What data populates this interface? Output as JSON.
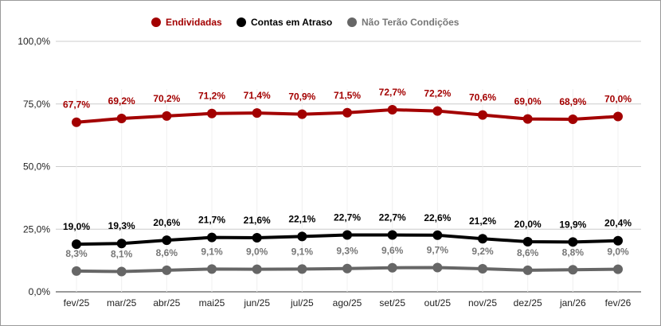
{
  "chart_data": {
    "type": "line",
    "title": "",
    "xlabel": "",
    "ylabel": "",
    "ylim": [
      0,
      100
    ],
    "yticks": [
      "0,0%",
      "25,0%",
      "50,0%",
      "75,0%",
      "100,0%"
    ],
    "grid": true,
    "legend_position": "top",
    "categories": [
      "fev/25",
      "mar/25",
      "abr/25",
      "mai25",
      "jun/25",
      "jul/25",
      "ago/25",
      "set/25",
      "out/25",
      "nov/25",
      "dez/25",
      "jan/26",
      "fev/26"
    ],
    "series": [
      {
        "name": "Endividadas",
        "color": "#a30000",
        "values": [
          67.7,
          69.2,
          70.2,
          71.2,
          71.4,
          70.9,
          71.5,
          72.7,
          72.2,
          70.6,
          69.0,
          68.9,
          70.0
        ],
        "labels": [
          "67,7%",
          "69,2%",
          "70,2%",
          "71,2%",
          "71,4%",
          "70,9%",
          "71,5%",
          "72,7%",
          "72,2%",
          "70,6%",
          "69,0%",
          "68,9%",
          "70,0%"
        ]
      },
      {
        "name": "Contas em Atraso",
        "color": "#000000",
        "values": [
          19.0,
          19.3,
          20.6,
          21.7,
          21.6,
          22.1,
          22.7,
          22.7,
          22.6,
          21.2,
          20.0,
          19.9,
          20.4
        ],
        "labels": [
          "19,0%",
          "19,3%",
          "20,6%",
          "21,7%",
          "21,6%",
          "22,1%",
          "22,7%",
          "22,7%",
          "22,6%",
          "21,2%",
          "20,0%",
          "19,9%",
          "20,4%"
        ]
      },
      {
        "name": "Não Terão Condições",
        "color": "#666666",
        "values": [
          8.3,
          8.1,
          8.6,
          9.1,
          9.0,
          9.1,
          9.3,
          9.6,
          9.7,
          9.2,
          8.6,
          8.8,
          9.0
        ],
        "labels": [
          "8,3%",
          "8,1%",
          "8,6%",
          "9,1%",
          "9,0%",
          "9,1%",
          "9,3%",
          "9,6%",
          "9,7%",
          "9,2%",
          "8,6%",
          "8,8%",
          "9,0%"
        ]
      }
    ]
  }
}
